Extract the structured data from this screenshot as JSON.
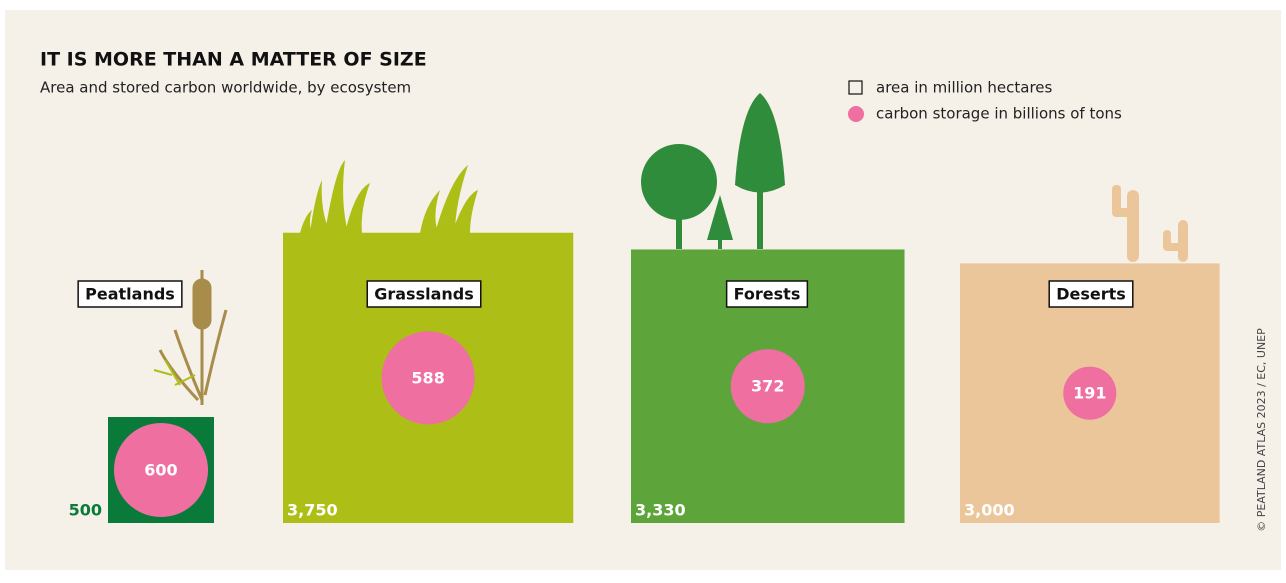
{
  "chart_data": {
    "type": "proportional-area",
    "title": "IT IS MORE THAN A MATTER OF SIZE",
    "subtitle": "Area and stored carbon worldwide, by ecosystem",
    "categories": [
      "Peatlands",
      "Grasslands",
      "Forests",
      "Deserts"
    ],
    "series": [
      {
        "name": "area in million hectares",
        "shape": "square",
        "colors": [
          "#0a7a3a",
          "#adbf17",
          "#5da53a",
          "#ecc69b"
        ],
        "values": [
          500,
          3750,
          3330,
          3000
        ],
        "value_labels": [
          "500",
          "3,750",
          "3,330",
          "3,000"
        ]
      },
      {
        "name": "carbon storage in billions of tons",
        "shape": "circle",
        "color": "#ee6fa0",
        "values": [
          600,
          588,
          372,
          191
        ]
      }
    ],
    "source": "© PEATLAND ATLAS 2023 / EC, UNEP"
  }
}
